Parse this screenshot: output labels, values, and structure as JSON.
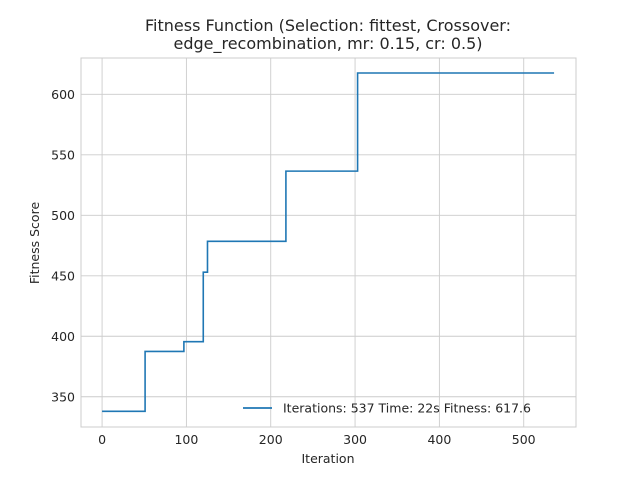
{
  "chart_data": {
    "type": "line",
    "title_line1": "Fitness Function (Selection: fittest, Crossover:",
    "title_line2": "edge_recombination, mr: 0.15, cr: 0.5)",
    "xlabel": "Iteration",
    "ylabel": "Fitness Score",
    "xlim": [
      -25,
      562
    ],
    "ylim": [
      325,
      630
    ],
    "xticks": [
      0,
      100,
      200,
      300,
      400,
      500
    ],
    "yticks": [
      350,
      400,
      450,
      500,
      550,
      600
    ],
    "xtick_labels": [
      "0",
      "100",
      "200",
      "300",
      "400",
      "500"
    ],
    "ytick_labels": [
      "350",
      "400",
      "450",
      "500",
      "550",
      "600"
    ],
    "grid": true,
    "legend_position": "lower-right",
    "series": [
      {
        "name": "Iterations: 537 Time: 22s Fitness: 617.6",
        "color": "#1f77b4",
        "x": [
          0,
          51,
          51,
          97,
          97,
          120,
          120,
          122,
          122,
          125,
          125,
          218,
          218,
          303,
          303,
          536
        ],
        "y": [
          338,
          338,
          387.5,
          387.5,
          395.5,
          395.5,
          453,
          453,
          453,
          453,
          478.5,
          478.5,
          536.5,
          536.5,
          617.6,
          617.6
        ]
      }
    ]
  }
}
